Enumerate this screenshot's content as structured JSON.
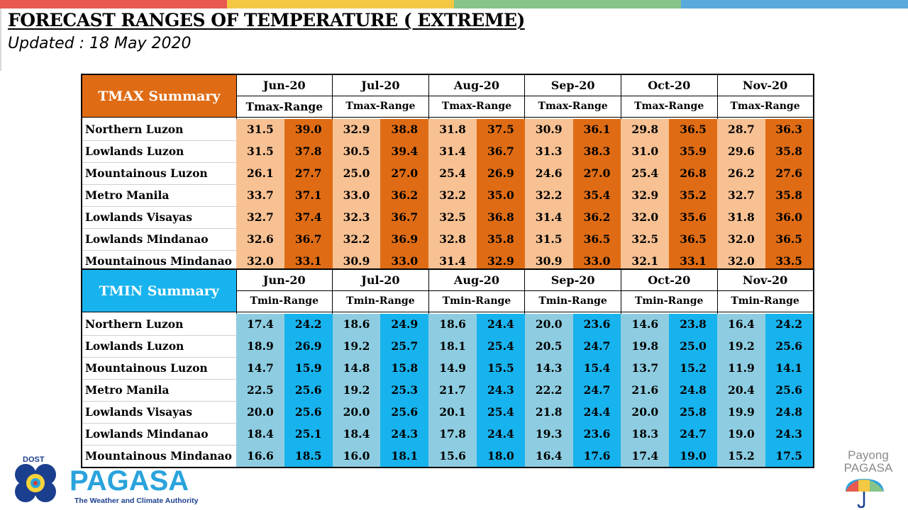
{
  "header": {
    "title": "FORECAST RANGES OF TEMPERATURE ( EXTREME)",
    "subtitle": "Updated : 18 May 2020"
  },
  "topbar_colors": [
    "#e8594f",
    "#f4c842",
    "#86c48a",
    "#5aa9db"
  ],
  "tmax": {
    "label": "TMAX Summary",
    "color_header": "#df6c14",
    "range_label": "Tmax-Range",
    "months": [
      "Jun-20",
      "Jul-20",
      "Aug-20",
      "Sep-20",
      "Oct-20",
      "Nov-20"
    ],
    "rows": [
      {
        "region": "Northern Luzon",
        "values": [
          "31.5",
          "39.0",
          "32.9",
          "38.8",
          "31.8",
          "37.5",
          "30.9",
          "36.1",
          "29.8",
          "36.5",
          "28.7",
          "36.3"
        ]
      },
      {
        "region": "Lowlands Luzon",
        "values": [
          "31.5",
          "37.8",
          "30.5",
          "39.4",
          "31.4",
          "36.7",
          "31.3",
          "38.3",
          "31.0",
          "35.9",
          "29.6",
          "35.8"
        ]
      },
      {
        "region": "Mountainous Luzon",
        "values": [
          "26.1",
          "27.7",
          "25.0",
          "27.0",
          "25.4",
          "26.9",
          "24.6",
          "27.0",
          "25.4",
          "26.8",
          "26.2",
          "27.6"
        ]
      },
      {
        "region": "Metro Manila",
        "values": [
          "33.7",
          "37.1",
          "33.0",
          "36.2",
          "32.2",
          "35.0",
          "32.2",
          "35.4",
          "32.9",
          "35.2",
          "32.7",
          "35.8"
        ]
      },
      {
        "region": "Lowlands Visayas",
        "values": [
          "32.7",
          "37.4",
          "32.3",
          "36.7",
          "32.5",
          "36.8",
          "31.4",
          "36.2",
          "32.0",
          "35.6",
          "31.8",
          "36.0"
        ]
      },
      {
        "region": "Lowlands Mindanao",
        "values": [
          "32.6",
          "36.7",
          "32.2",
          "36.9",
          "32.8",
          "35.8",
          "31.5",
          "36.5",
          "32.5",
          "36.5",
          "32.0",
          "36.5"
        ]
      },
      {
        "region": "Mountainous Mindanao",
        "values": [
          "32.0",
          "33.1",
          "30.9",
          "33.0",
          "31.4",
          "32.9",
          "30.9",
          "33.0",
          "32.1",
          "33.1",
          "32.0",
          "33.5"
        ]
      }
    ]
  },
  "tmin": {
    "label": "TMIN Summary",
    "color_header": "#17b3ee",
    "range_label": "Tmin-Range",
    "months": [
      "Jun-20",
      "Jul-20",
      "Aug-20",
      "Sep-20",
      "Oct-20",
      "Nov-20"
    ],
    "rows": [
      {
        "region": "Northern Luzon",
        "values": [
          "17.4",
          "24.2",
          "18.6",
          "24.9",
          "18.6",
          "24.4",
          "20.0",
          "23.6",
          "14.6",
          "23.8",
          "16.4",
          "24.2"
        ]
      },
      {
        "region": "Lowlands Luzon",
        "values": [
          "18.9",
          "26.9",
          "19.2",
          "25.7",
          "18.1",
          "25.4",
          "20.5",
          "24.7",
          "19.8",
          "25.0",
          "19.2",
          "25.6"
        ]
      },
      {
        "region": "Mountainous Luzon",
        "values": [
          "14.7",
          "15.9",
          "14.8",
          "15.8",
          "14.9",
          "15.5",
          "14.3",
          "15.4",
          "13.7",
          "15.2",
          "11.9",
          "14.1"
        ]
      },
      {
        "region": "Metro Manila",
        "values": [
          "22.5",
          "25.6",
          "19.2",
          "25.3",
          "21.7",
          "24.3",
          "22.2",
          "24.7",
          "21.6",
          "24.8",
          "20.4",
          "25.6"
        ]
      },
      {
        "region": "Lowlands Visayas",
        "values": [
          "20.0",
          "25.6",
          "20.0",
          "25.6",
          "20.1",
          "25.4",
          "21.8",
          "24.4",
          "20.0",
          "25.8",
          "19.9",
          "24.8"
        ]
      },
      {
        "region": "Lowlands Mindanao",
        "values": [
          "18.4",
          "25.1",
          "18.4",
          "24.3",
          "17.8",
          "24.4",
          "19.3",
          "23.6",
          "18.3",
          "24.7",
          "19.0",
          "24.3"
        ]
      },
      {
        "region": "Mountainous Mindanao",
        "values": [
          "16.6",
          "18.5",
          "16.0",
          "18.1",
          "15.6",
          "18.0",
          "16.4",
          "17.6",
          "17.4",
          "19.0",
          "15.2",
          "17.5"
        ]
      }
    ]
  },
  "logo": {
    "dost": "DOST",
    "name": "PAGASA",
    "tagline": "The Weather and Climate Authority"
  },
  "payong": {
    "line1": "Payong",
    "line2": "PAGASA"
  }
}
